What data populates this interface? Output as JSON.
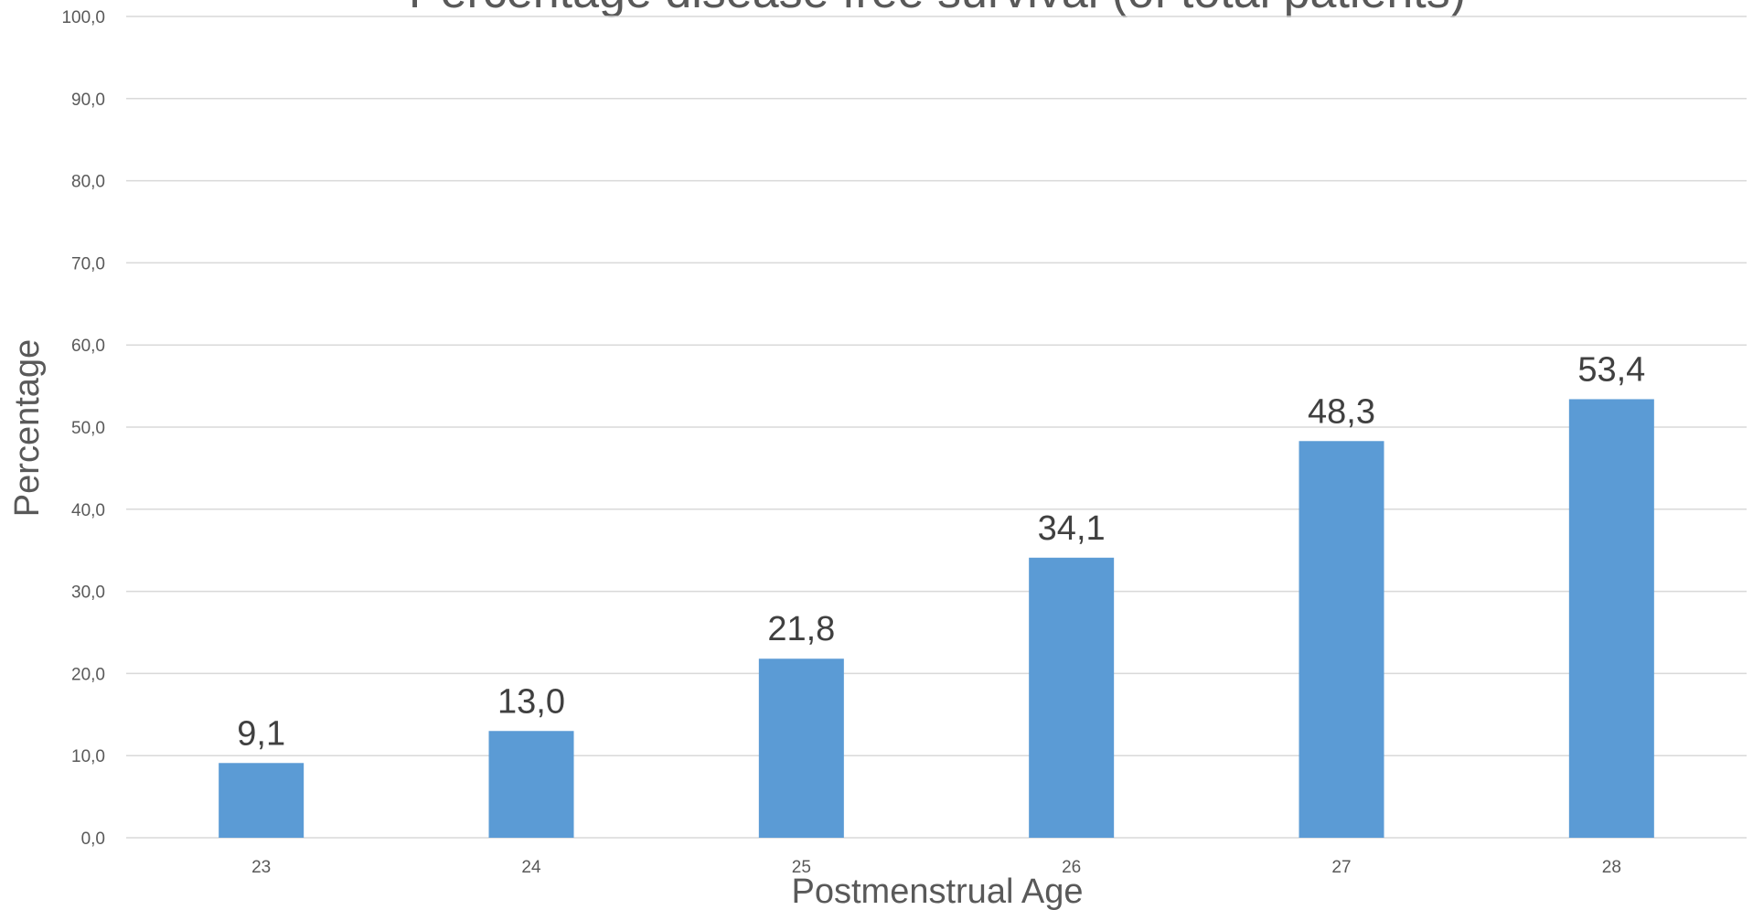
{
  "chart_data": {
    "type": "bar",
    "title": "Percentage disease free survival (of total patients)",
    "xlabel": "Postmenstrual Age",
    "ylabel": "Percentage",
    "categories": [
      "23",
      "24",
      "25",
      "26",
      "27",
      "28"
    ],
    "values": [
      9.1,
      13.0,
      21.8,
      34.1,
      48.3,
      53.4
    ],
    "value_labels": [
      "9,1",
      "13,0",
      "21,8",
      "34,1",
      "48,3",
      "53,4"
    ],
    "yticks": [
      "0,0",
      "10,0",
      "20,0",
      "30,0",
      "40,0",
      "50,0",
      "60,0",
      "70,0",
      "80,0",
      "90,0",
      "100,0"
    ],
    "ylim": [
      0,
      100
    ],
    "grid": true,
    "legend": "none",
    "colors": {
      "bar": "#5B9BD5",
      "grid": "#D9D9D9",
      "text": "#595959",
      "data_label": "#404040"
    }
  }
}
